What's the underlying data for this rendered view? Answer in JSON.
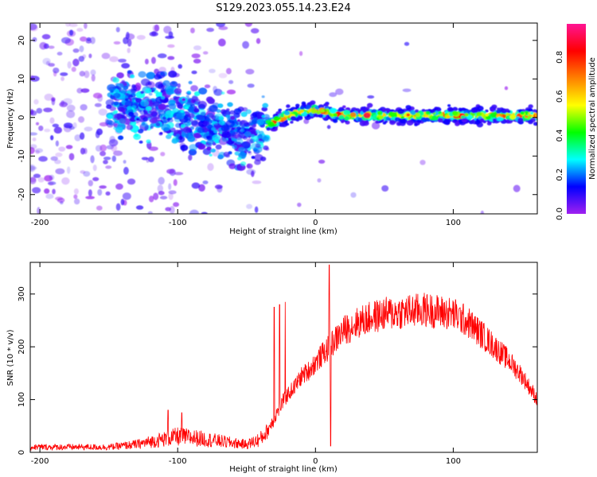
{
  "title": "S129.2023.055.14.23.E24",
  "chart_data": [
    {
      "type": "heatmap",
      "xlabel": "Height of straight line (km)",
      "ylabel": "Frequency (Hz)",
      "xlim": [
        -207,
        161
      ],
      "ylim": [
        -25,
        24.5
      ],
      "x_ticks": [
        -200,
        -100,
        0,
        100
      ],
      "y_ticks": [
        -20,
        -10,
        0,
        10,
        20
      ],
      "colorbar": {
        "label": "Normalized spectral amplitude",
        "range": [
          0,
          0.97
        ],
        "ticks": [
          "0.0",
          "0.2",
          "0.4",
          "0.6",
          "0.8"
        ],
        "colormap": [
          "#a020f0",
          "#0000ff",
          "#00ffff",
          "#00ff00",
          "#ffff00",
          "#ff8000",
          "#ff0000",
          "#ff1493"
        ]
      },
      "ridge": {
        "x": [
          -120,
          -100,
          -80,
          -60,
          -45,
          -35,
          -20,
          -10,
          0,
          20,
          50,
          100,
          161
        ],
        "y": [
          3,
          2,
          -1,
          -4,
          -5,
          -2,
          0.5,
          1.5,
          2,
          0.5,
          0.5,
          0.5,
          0.5
        ]
      }
    },
    {
      "type": "line",
      "xlabel": "Height of straight line (km)",
      "ylabel": "SNR (10 * v/v)",
      "xlim": [
        -207,
        161
      ],
      "ylim": [
        0,
        360
      ],
      "x_ticks": [
        -200,
        -100,
        0,
        100
      ],
      "y_ticks": [
        0,
        100,
        200,
        300
      ],
      "color": "#ff0000",
      "envelope": {
        "x": [
          -207,
          -150,
          -130,
          -110,
          -100,
          -90,
          -80,
          -60,
          -50,
          -40,
          -35,
          -30,
          -25,
          -20,
          -15,
          -10,
          -5,
          0,
          5,
          10,
          15,
          20,
          30,
          40,
          50,
          60,
          80,
          100,
          110,
          120,
          130,
          140,
          150,
          161
        ],
        "y": [
          10,
          10,
          15,
          25,
          30,
          28,
          25,
          18,
          15,
          25,
          40,
          65,
          90,
          110,
          125,
          145,
          155,
          170,
          185,
          200,
          215,
          230,
          245,
          255,
          262,
          265,
          270,
          262,
          248,
          225,
          200,
          175,
          145,
          100
        ]
      },
      "spikes": [
        {
          "x": -107,
          "y": 80
        },
        {
          "x": -97,
          "y": 75
        },
        {
          "x": -30,
          "y": 275
        },
        {
          "x": -26,
          "y": 280
        },
        {
          "x": -22,
          "y": 285
        },
        {
          "x": 10,
          "y": 355
        },
        {
          "x": 11,
          "y": 12
        }
      ]
    }
  ]
}
